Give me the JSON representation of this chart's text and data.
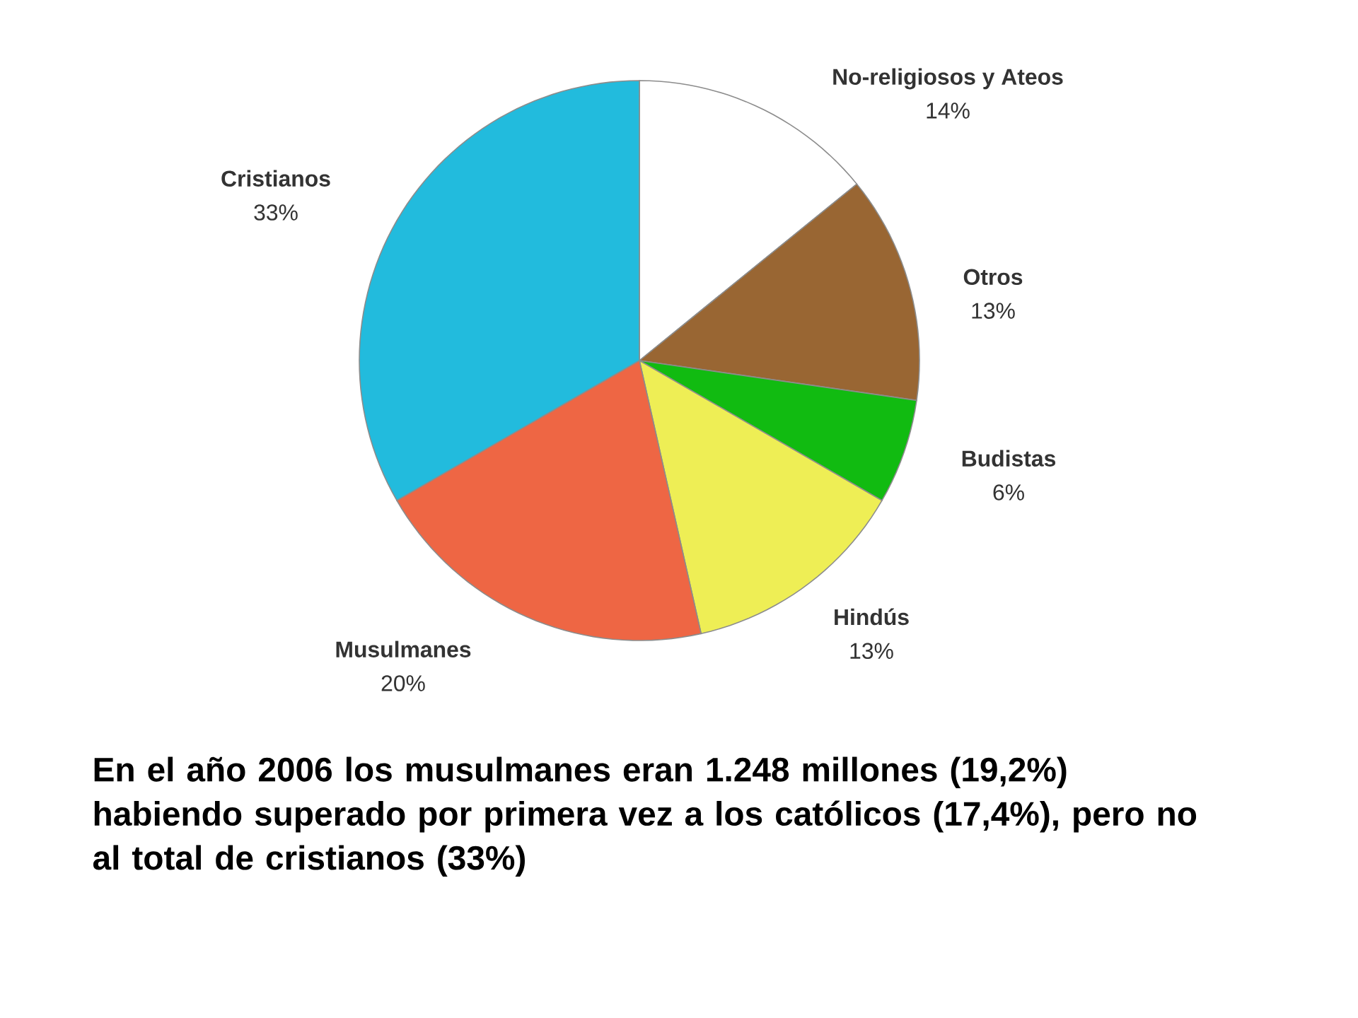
{
  "chart_data": {
    "type": "pie",
    "categories": [
      "No-religiosos y Ateos",
      "Otros",
      "Budistas",
      "Hindús",
      "Musulmanes",
      "Cristianos"
    ],
    "values": [
      14,
      13,
      6,
      13,
      20,
      33
    ],
    "value_labels": [
      "14%",
      "13%",
      "6%",
      "13%",
      "20%",
      "33%"
    ],
    "colors": [
      "#ffffff",
      "#996633",
      "#11bb11",
      "#eeee55",
      "#ee6644",
      "#22bbdd"
    ],
    "annotations": [
      "En el año 2006 los musulmanes eran 1.248 millones (19,2%) habiendo superado por primera vez a los católicos (17,4%), pero no al total de cristianos (33%)"
    ]
  }
}
